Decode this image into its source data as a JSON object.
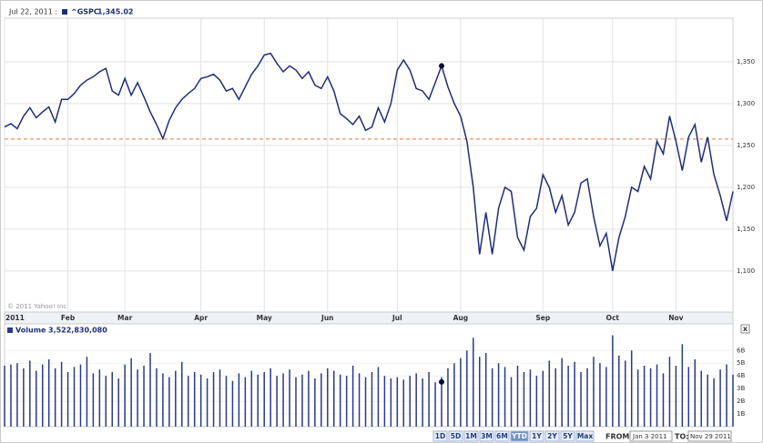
{
  "chart_data": [
    {
      "type": "line",
      "header_date": "Jul 22, 2011 :",
      "copyright": "© 2011 Yahoo! Inc.",
      "series": [
        {
          "name": "^GSPC",
          "color": "#1f2d7a",
          "values": [
            1272,
            1276,
            1270,
            1285,
            1295,
            1283,
            1290,
            1296,
            1278,
            1305,
            1305,
            1312,
            1322,
            1328,
            1332,
            1338,
            1342,
            1315,
            1310,
            1330,
            1310,
            1325,
            1308,
            1290,
            1275,
            1258,
            1280,
            1295,
            1305,
            1312,
            1318,
            1330,
            1332,
            1335,
            1328,
            1315,
            1318,
            1305,
            1320,
            1335,
            1345,
            1358,
            1360,
            1348,
            1338,
            1345,
            1340,
            1330,
            1338,
            1322,
            1318,
            1332,
            1315,
            1288,
            1282,
            1275,
            1285,
            1268,
            1272,
            1295,
            1278,
            1300,
            1340,
            1352,
            1340,
            1318,
            1315,
            1305,
            1325,
            1345,
            1320,
            1300,
            1285,
            1255,
            1200,
            1120,
            1170,
            1120,
            1175,
            1200,
            1195,
            1140,
            1125,
            1165,
            1175,
            1215,
            1200,
            1170,
            1190,
            1155,
            1170,
            1205,
            1210,
            1165,
            1130,
            1145,
            1100,
            1140,
            1165,
            1200,
            1195,
            1225,
            1210,
            1255,
            1240,
            1285,
            1255,
            1220,
            1260,
            1275,
            1230,
            1260,
            1215,
            1190,
            1160,
            1195
          ]
        }
      ],
      "highlight": {
        "x": 69,
        "value": 1345.02,
        "label": "1,345.02"
      },
      "reference": 1257.64,
      "xlim": [
        0,
        115
      ],
      "xticks": [
        {
          "value": 0,
          "label": "2011"
        },
        {
          "value": 10,
          "label": "Feb"
        },
        {
          "value": 19,
          "label": "Mar"
        },
        {
          "value": 31,
          "label": "Apr"
        },
        {
          "value": 41,
          "label": "May"
        },
        {
          "value": 51,
          "label": "Jun"
        },
        {
          "value": 62,
          "label": "Jul"
        },
        {
          "value": 72,
          "label": "Aug"
        },
        {
          "value": 85,
          "label": "Sep"
        },
        {
          "value": 96,
          "label": "Oct"
        },
        {
          "value": 106,
          "label": "Nov"
        }
      ],
      "ylim": [
        1051,
        1402
      ],
      "yticks": [
        {
          "value": 1100,
          "label": "1,100"
        },
        {
          "value": 1150,
          "label": "1,150"
        },
        {
          "value": 1200,
          "label": "1,200"
        },
        {
          "value": 1250,
          "label": "1,250"
        },
        {
          "value": 1300,
          "label": "1,300"
        },
        {
          "value": 1350,
          "label": "1,350"
        }
      ],
      "grid": true
    },
    {
      "type": "bar",
      "series": [
        {
          "name": "Volume",
          "color": "#2a3a8a",
          "values": [
            4.8,
            4.9,
            5.0,
            4.6,
            5.2,
            4.4,
            4.9,
            5.3,
            4.6,
            5.1,
            4.3,
            4.7,
            4.9,
            5.5,
            4.2,
            4.5,
            4.0,
            4.3,
            3.8,
            4.9,
            5.4,
            4.5,
            4.8,
            5.8,
            4.6,
            4.2,
            3.9,
            4.4,
            5.1,
            4.0,
            4.3,
            4.1,
            3.8,
            4.3,
            4.5,
            4.0,
            3.6,
            4.2,
            3.9,
            4.4,
            4.1,
            4.3,
            4.6,
            4.0,
            4.2,
            4.5,
            3.9,
            4.1,
            4.4,
            3.8,
            4.2,
            4.6,
            4.4,
            4.1,
            4.0,
            4.8,
            4.2,
            3.9,
            4.3,
            4.7,
            4.0,
            3.8,
            3.9,
            3.7,
            4.0,
            4.2,
            3.8,
            4.3,
            3.5,
            3.9,
            4.6,
            5.0,
            5.4,
            6.0,
            7.0,
            5.5,
            5.8,
            4.6,
            5.0,
            4.7,
            3.9,
            4.8,
            4.3,
            4.5,
            4.0,
            4.4,
            5.2,
            4.6,
            5.4,
            4.8,
            5.1,
            4.3,
            4.6,
            5.5,
            5.0,
            4.7,
            7.2,
            5.6,
            5.2,
            6.0,
            4.5,
            4.8,
            4.6,
            4.9,
            4.2,
            5.5,
            4.8,
            6.5,
            4.7,
            5.3,
            4.4,
            4.1,
            3.8,
            4.5,
            4.9,
            4.1
          ]
        }
      ],
      "highlight": {
        "x": 69,
        "value": 3.52283008,
        "label": "3,522,830,080"
      },
      "xlim": [
        0,
        115
      ],
      "ylim": [
        0,
        8.1
      ],
      "yticks": [
        {
          "value": 1,
          "label": "1B"
        },
        {
          "value": 2,
          "label": "2B"
        },
        {
          "value": 3,
          "label": "3B"
        },
        {
          "value": 4,
          "label": "4B"
        },
        {
          "value": 5,
          "label": "5B"
        },
        {
          "value": 6,
          "label": "6B"
        }
      ]
    }
  ],
  "controls": {
    "ranges": [
      "1D",
      "5D",
      "1M",
      "3M",
      "6M",
      "YTD",
      "1Y",
      "2Y",
      "5Y",
      "Max"
    ],
    "selected": "YTD",
    "from_label": "FROM:",
    "from": "Jan 3 2011",
    "to_label": "TO:",
    "to": "Nov 29 2011",
    "close": "x"
  }
}
